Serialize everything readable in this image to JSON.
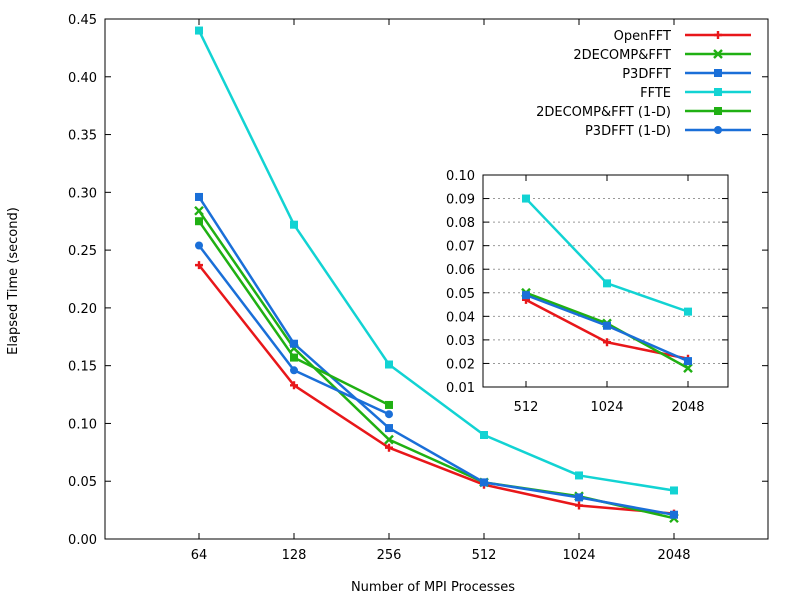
{
  "chart_data": [
    {
      "type": "line",
      "xlabel": "Number of MPI Processes",
      "ylabel": "Elapsed Time (second)",
      "categories": [
        "64",
        "128",
        "256",
        "512",
        "1024",
        "2048"
      ],
      "ylim": [
        0,
        0.45
      ],
      "yticks": [
        "0.00",
        "0.05",
        "0.10",
        "0.15",
        "0.20",
        "0.25",
        "0.30",
        "0.35",
        "0.40",
        "0.45"
      ],
      "grid": false,
      "legend_position": "top-right",
      "series": [
        {
          "name": "OpenFFT",
          "color": "#e8171a",
          "marker": "plus",
          "values": [
            0.237,
            0.133,
            0.079,
            0.047,
            0.029,
            0.022
          ]
        },
        {
          "name": "2DECOMP&FFT",
          "color": "#20b013",
          "marker": "cross",
          "values": [
            0.284,
            0.165,
            0.086,
            0.049,
            0.037,
            0.018
          ]
        },
        {
          "name": "P3DFFT",
          "color": "#1a6fd8",
          "marker": "square",
          "values": [
            0.296,
            0.169,
            0.096,
            0.049,
            0.036,
            0.021
          ]
        },
        {
          "name": "FFTE",
          "color": "#12d3d3",
          "marker": "square",
          "values": [
            0.44,
            0.272,
            0.151,
            0.09,
            0.055,
            0.042
          ]
        },
        {
          "name": "2DECOMP&FFT (1-D)",
          "color": "#20b013",
          "marker": "square",
          "values": [
            0.275,
            0.157,
            0.116,
            null,
            null,
            null
          ]
        },
        {
          "name": "P3DFFT      (1-D)",
          "color": "#1a6fd8",
          "marker": "circle",
          "values": [
            0.254,
            0.146,
            0.108,
            null,
            null,
            null
          ]
        }
      ]
    },
    {
      "type": "line",
      "categories": [
        "512",
        "1024",
        "2048"
      ],
      "ylim": [
        0.01,
        0.1
      ],
      "yticks": [
        "0.01",
        "0.02",
        "0.03",
        "0.04",
        "0.05",
        "0.06",
        "0.07",
        "0.08",
        "0.09",
        "0.10"
      ],
      "grid": true,
      "series": [
        {
          "color": "#e8171a",
          "marker": "plus",
          "values": [
            0.047,
            0.029,
            0.022
          ]
        },
        {
          "color": "#20b013",
          "marker": "cross",
          "values": [
            0.05,
            0.037,
            0.018
          ]
        },
        {
          "color": "#1a6fd8",
          "marker": "square",
          "values": [
            0.049,
            0.036,
            0.021
          ]
        },
        {
          "color": "#12d3d3",
          "marker": "square",
          "values": [
            0.09,
            0.054,
            0.042
          ]
        }
      ]
    }
  ]
}
